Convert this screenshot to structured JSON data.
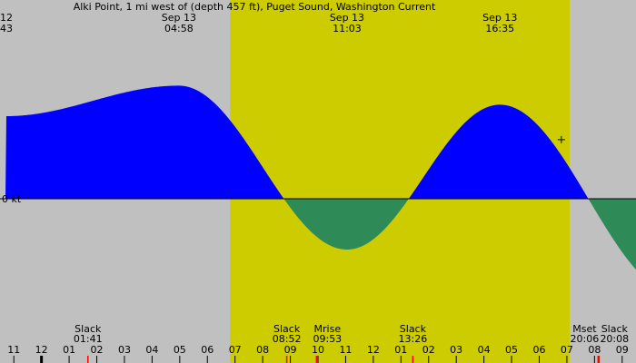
{
  "chart_data": {
    "type": "area",
    "title": "Alki Point, 1 mi west of (depth 457 ft), Puget Sound, Washington Current",
    "ylabel": "",
    "xlabel": "",
    "zero_label": "0 kt",
    "unit_note": "x in decimal hours on Sep 13 (local)",
    "xlim": [
      -1.5,
      21.5
    ],
    "ylim": [
      -1.6,
      2.0
    ],
    "day_shade": {
      "start": 6.82,
      "end": 19.1,
      "color": "#cccc00"
    },
    "night_color": "#c0c0c0",
    "flood_color": "#0000ff",
    "ebb_color": "#2e8b57",
    "extremes": [
      {
        "t": -1.28,
        "v": 1.3,
        "date": "12",
        "time": "43"
      },
      {
        "t": 4.97,
        "v": 1.78,
        "date": "Sep 13",
        "time": "04:58"
      },
      {
        "t": 11.05,
        "v": -0.8,
        "date": "Sep 13",
        "time": "11:03"
      },
      {
        "t": 16.58,
        "v": 1.48,
        "date": "Sep 13",
        "time": "16:35"
      },
      {
        "t": 23.0,
        "v": -1.5,
        "date": "",
        "time": ""
      }
    ],
    "curve_start": {
      "t": -1.5,
      "v": -1.45
    },
    "slacks": [
      1.68,
      8.87,
      13.43,
      20.13
    ],
    "events": [
      {
        "t": 1.68,
        "name": "Slack",
        "time": "01:41"
      },
      {
        "t": 8.87,
        "name": "Slack",
        "time": "08:52"
      },
      {
        "t": 9.88,
        "name": "Mrise",
        "time": "09:53"
      },
      {
        "t": 13.43,
        "name": "Slack",
        "time": "13:26"
      },
      {
        "t": 20.1,
        "name": "Mset",
        "time": "20:06"
      },
      {
        "t": 20.13,
        "name": "Slack",
        "time": "20:08"
      }
    ],
    "hour_ticks": [
      {
        "t": -1,
        "label": "11"
      },
      {
        "t": 0,
        "label": "12"
      },
      {
        "t": 1,
        "label": "01"
      },
      {
        "t": 2,
        "label": "02"
      },
      {
        "t": 3,
        "label": "03"
      },
      {
        "t": 4,
        "label": "04"
      },
      {
        "t": 5,
        "label": "05"
      },
      {
        "t": 6,
        "label": "06"
      },
      {
        "t": 7,
        "label": "07"
      },
      {
        "t": 8,
        "label": "08"
      },
      {
        "t": 9,
        "label": "09"
      },
      {
        "t": 10,
        "label": "10"
      },
      {
        "t": 11,
        "label": "11"
      },
      {
        "t": 12,
        "label": "12"
      },
      {
        "t": 13,
        "label": "01"
      },
      {
        "t": 14,
        "label": "02"
      },
      {
        "t": 15,
        "label": "03"
      },
      {
        "t": 16,
        "label": "04"
      },
      {
        "t": 17,
        "label": "05"
      },
      {
        "t": 18,
        "label": "06"
      },
      {
        "t": 19,
        "label": "07"
      },
      {
        "t": 20,
        "label": "08"
      },
      {
        "t": 21,
        "label": "09"
      }
    ],
    "midnight_tick": 0,
    "current_marker": {
      "t": 18.8,
      "v": 0.93
    }
  }
}
